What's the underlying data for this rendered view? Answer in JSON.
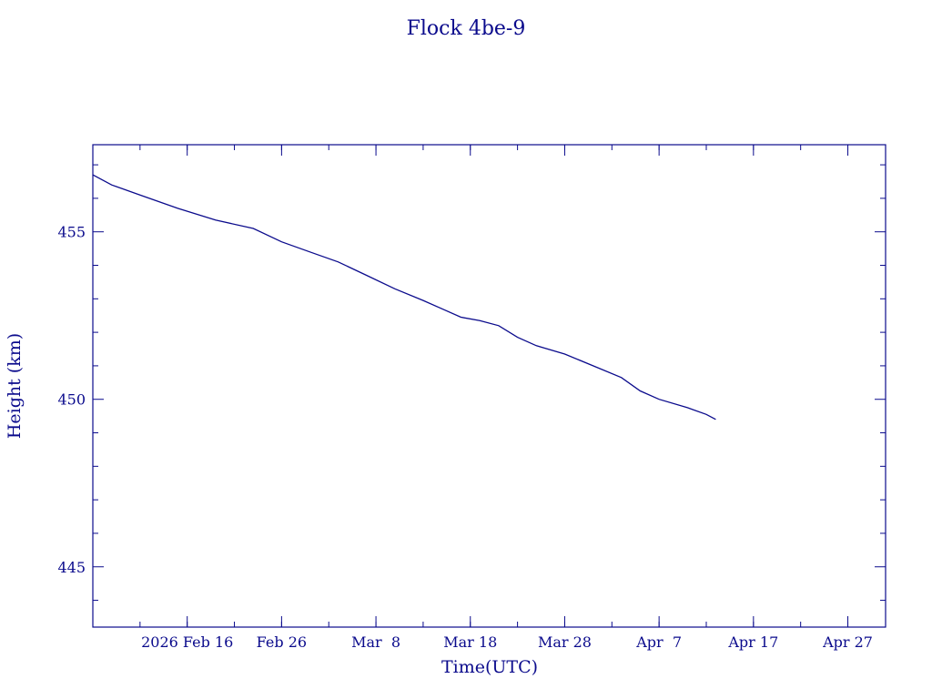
{
  "chart_data": {
    "type": "line",
    "title": "Flock 4be-9",
    "xlabel": "Time(UTC)",
    "ylabel": "Height (km)",
    "x_range": [
      "2026-02-06",
      "2026-05-01"
    ],
    "ylim": [
      443.2,
      457.6
    ],
    "x_ticks": [
      {
        "date": "2026-02-16",
        "label": "2026 Feb 16"
      },
      {
        "date": "2026-02-26",
        "label": "Feb 26"
      },
      {
        "date": "2026-03-08",
        "label": "Mar  8"
      },
      {
        "date": "2026-03-18",
        "label": "Mar 18"
      },
      {
        "date": "2026-03-28",
        "label": "Mar 28"
      },
      {
        "date": "2026-04-07",
        "label": "Apr  7"
      },
      {
        "date": "2026-04-17",
        "label": "Apr 17"
      },
      {
        "date": "2026-04-27",
        "label": "Apr 27"
      }
    ],
    "y_ticks": [
      {
        "value": 445,
        "label": "445"
      },
      {
        "value": 450,
        "label": "450"
      },
      {
        "value": 455,
        "label": "455"
      }
    ],
    "grid": false,
    "series": [
      {
        "color": "#0a0a8c",
        "points": [
          {
            "x": "2026-02-06",
            "y": 456.7
          },
          {
            "x": "2026-02-08",
            "y": 456.4
          },
          {
            "x": "2026-02-11",
            "y": 456.1
          },
          {
            "x": "2026-02-15",
            "y": 455.7
          },
          {
            "x": "2026-02-19",
            "y": 455.35
          },
          {
            "x": "2026-02-23",
            "y": 455.1
          },
          {
            "x": "2026-02-26",
            "y": 454.7
          },
          {
            "x": "2026-03-01",
            "y": 454.4
          },
          {
            "x": "2026-03-04",
            "y": 454.1
          },
          {
            "x": "2026-03-07",
            "y": 453.7
          },
          {
            "x": "2026-03-10",
            "y": 453.3
          },
          {
            "x": "2026-03-13",
            "y": 452.95
          },
          {
            "x": "2026-03-15",
            "y": 452.7
          },
          {
            "x": "2026-03-17",
            "y": 452.45
          },
          {
            "x": "2026-03-19",
            "y": 452.35
          },
          {
            "x": "2026-03-21",
            "y": 452.2
          },
          {
            "x": "2026-03-23",
            "y": 451.85
          },
          {
            "x": "2026-03-25",
            "y": 451.6
          },
          {
            "x": "2026-03-28",
            "y": 451.35
          },
          {
            "x": "2026-03-31",
            "y": 451.0
          },
          {
            "x": "2026-04-03",
            "y": 450.65
          },
          {
            "x": "2026-04-05",
            "y": 450.25
          },
          {
            "x": "2026-04-07",
            "y": 450.0
          },
          {
            "x": "2026-04-10",
            "y": 449.75
          },
          {
            "x": "2026-04-12",
            "y": 449.55
          },
          {
            "x": "2026-04-13",
            "y": 449.4
          }
        ]
      }
    ]
  }
}
